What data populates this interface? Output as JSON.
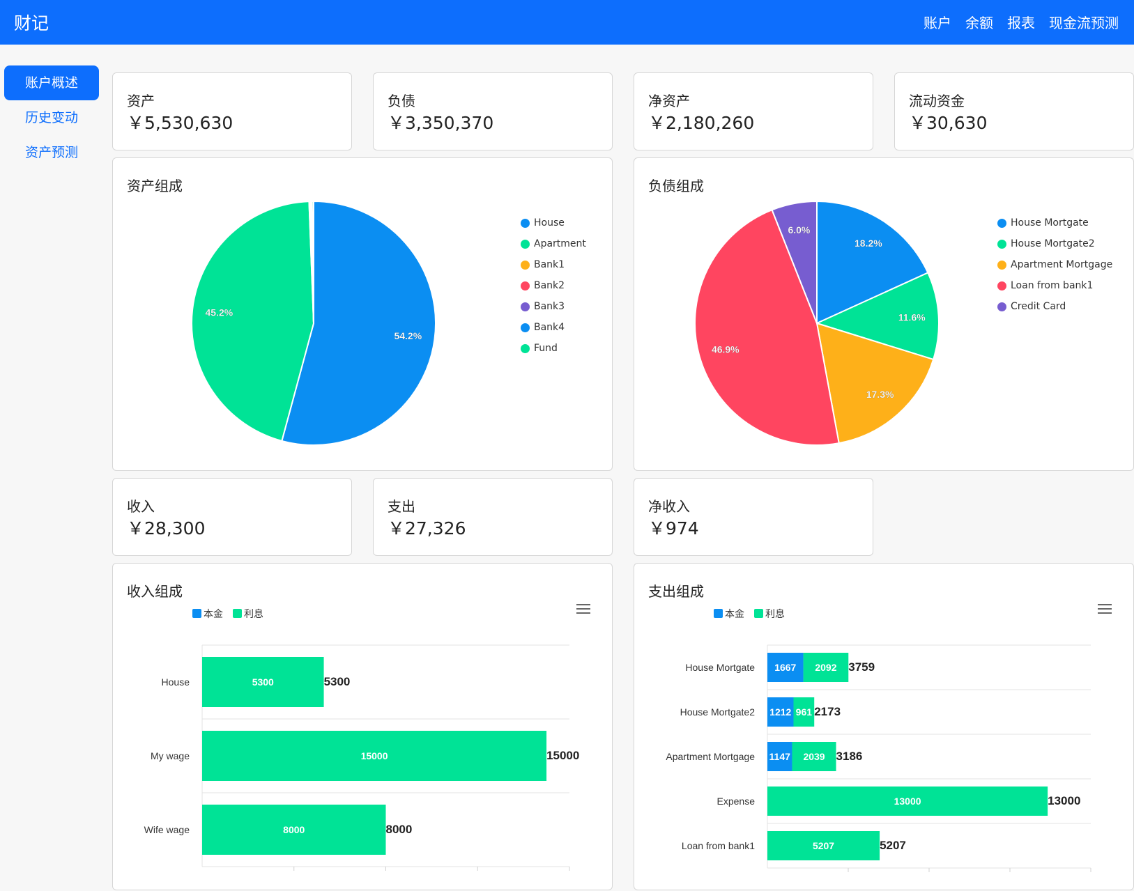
{
  "app": {
    "brand": "财记"
  },
  "nav": {
    "items": [
      "账户",
      "余额",
      "报表",
      "现金流预测"
    ]
  },
  "sidebar": {
    "items": [
      "账户概述",
      "历史变动",
      "资产预测"
    ]
  },
  "stats_top": [
    {
      "label": "资产",
      "value": "￥5,530,630"
    },
    {
      "label": "负债",
      "value": "￥3,350,370"
    },
    {
      "label": "净资产",
      "value": "￥2,180,260"
    },
    {
      "label": "流动资金",
      "value": "￥30,630"
    }
  ],
  "stats_mid": [
    {
      "label": "收入",
      "value": "￥28,300"
    },
    {
      "label": "支出",
      "value": "￥27,326"
    },
    {
      "label": "净收入",
      "value": "￥974"
    }
  ],
  "colors": {
    "blue": "#0b8ef2",
    "green": "#00e396",
    "orange": "#feb019",
    "red": "#ff4560",
    "purple": "#775dd0",
    "navbar": "#0d6efd"
  },
  "chart_data": [
    {
      "type": "pie",
      "title": "资产组成",
      "labels": [
        "House",
        "Apartment",
        "Bank1",
        "Bank2",
        "Bank3",
        "Bank4",
        "Fund"
      ],
      "colors": [
        "#0b8ef2",
        "#00e396",
        "#feb019",
        "#ff4560",
        "#775dd0",
        "#0b8ef2",
        "#00e396"
      ],
      "values": [
        54.2,
        45.2,
        0.1,
        0.1,
        0.1,
        0.1,
        0.2
      ],
      "data_labels": [
        "54.2%",
        "45.2%",
        "",
        "",
        "",
        "",
        ""
      ]
    },
    {
      "type": "pie",
      "title": "负债组成",
      "labels": [
        "House Mortgate",
        "House Mortgate2",
        "Apartment Mortgage",
        "Loan from bank1",
        "Credit Card"
      ],
      "colors": [
        "#0b8ef2",
        "#00e396",
        "#feb019",
        "#ff4560",
        "#775dd0"
      ],
      "values": [
        18.2,
        11.6,
        17.3,
        46.9,
        6.0
      ],
      "data_labels": [
        "18.2%",
        "11.6%",
        "17.3%",
        "46.9%",
        "6.0%"
      ]
    },
    {
      "type": "bar",
      "orientation": "horizontal",
      "stacked": true,
      "title": "收入组成",
      "categories": [
        "House",
        "My wage",
        "Wife wage"
      ],
      "series": [
        {
          "name": "本金",
          "color": "#0b8ef2",
          "values": [
            0,
            0,
            0
          ]
        },
        {
          "name": "利息",
          "color": "#00e396",
          "values": [
            5300,
            15000,
            8000
          ]
        }
      ],
      "totals": [
        5300,
        15000,
        8000
      ],
      "xlim": [
        0,
        16000
      ],
      "grid": true,
      "legend": "top-left"
    },
    {
      "type": "bar",
      "orientation": "horizontal",
      "stacked": true,
      "title": "支出组成",
      "categories": [
        "House Mortgate",
        "House Mortgate2",
        "Apartment Mortgage",
        "Expense",
        "Loan from bank1"
      ],
      "series": [
        {
          "name": "本金",
          "color": "#0b8ef2",
          "values": [
            1667,
            1212,
            1147,
            0,
            0
          ]
        },
        {
          "name": "利息",
          "color": "#00e396",
          "values": [
            2092,
            961,
            2039,
            13000,
            5207
          ]
        }
      ],
      "totals": [
        3759,
        2173,
        3186,
        13000,
        5207
      ],
      "xlim": [
        0,
        15000
      ],
      "grid": true,
      "legend": "top-left"
    }
  ]
}
